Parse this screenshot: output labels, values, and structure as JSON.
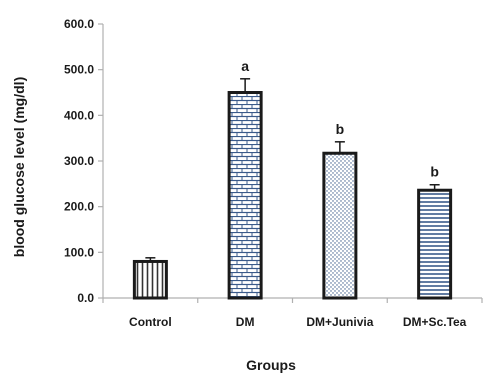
{
  "chart_data": {
    "type": "bar",
    "categories": [
      "Control",
      "DM",
      "DM+Junivia",
      "DM+Sc.Tea"
    ],
    "values": [
      80.0,
      450.0,
      317.0,
      236.0
    ],
    "errors": [
      8.0,
      30.0,
      25.0,
      12.0
    ],
    "significance_labels": [
      "",
      "a",
      "b",
      "b"
    ],
    "patterns": [
      "vertical-lines",
      "brick",
      "dots",
      "horizontal-lines"
    ],
    "bar_color": "#1a1a1a",
    "xlabel": "Groups",
    "ylabel": "blood glucose level (mg/dl)",
    "ylim": [
      0,
      600
    ],
    "yticks": [
      "0.0",
      "100.0",
      "200.0",
      "300.0",
      "400.0",
      "500.0",
      "600.0"
    ],
    "grid": false,
    "legend": "none"
  }
}
